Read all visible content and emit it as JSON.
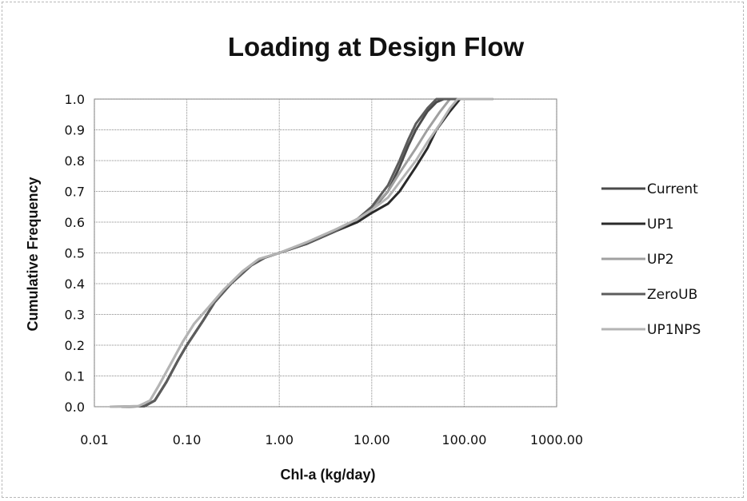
{
  "chart_data": {
    "type": "line",
    "title": "Loading at Design Flow",
    "xlabel": "Chl-a (kg/day)",
    "ylabel": "Cumulative Frequency",
    "x_scale": "log",
    "xlim": [
      0.01,
      1000
    ],
    "ylim": [
      0,
      1
    ],
    "x_ticks": [
      "0.01",
      "0.10",
      "1.00",
      "10.00",
      "100.00",
      "1000.00"
    ],
    "y_ticks": [
      "0.0",
      "0.1",
      "0.2",
      "0.3",
      "0.4",
      "0.5",
      "0.6",
      "0.7",
      "0.8",
      "0.9",
      "1.0"
    ],
    "grid": true,
    "legend_position": "right",
    "series": [
      {
        "name": "Current",
        "color": "#4a4a4a",
        "points": [
          [
            0.02,
            0.0
          ],
          [
            0.035,
            0.002
          ],
          [
            0.045,
            0.02
          ],
          [
            0.06,
            0.08
          ],
          [
            0.08,
            0.15
          ],
          [
            0.1,
            0.2
          ],
          [
            0.15,
            0.28
          ],
          [
            0.2,
            0.34
          ],
          [
            0.3,
            0.4
          ],
          [
            0.5,
            0.46
          ],
          [
            0.7,
            0.485
          ],
          [
            1.0,
            0.5
          ],
          [
            2.0,
            0.53
          ],
          [
            4.0,
            0.57
          ],
          [
            7.0,
            0.61
          ],
          [
            10.0,
            0.64
          ],
          [
            15.0,
            0.7
          ],
          [
            20.0,
            0.78
          ],
          [
            25.0,
            0.85
          ],
          [
            30.0,
            0.9
          ],
          [
            40.0,
            0.96
          ],
          [
            50.0,
            0.99
          ],
          [
            60.0,
            1.0
          ],
          [
            200.0,
            1.0
          ]
        ]
      },
      {
        "name": "UP1",
        "color": "#2a2a2a",
        "points": [
          [
            0.02,
            0.0
          ],
          [
            0.035,
            0.002
          ],
          [
            0.045,
            0.02
          ],
          [
            0.06,
            0.08
          ],
          [
            0.08,
            0.15
          ],
          [
            0.1,
            0.2
          ],
          [
            0.15,
            0.28
          ],
          [
            0.2,
            0.34
          ],
          [
            0.3,
            0.4
          ],
          [
            0.5,
            0.46
          ],
          [
            0.7,
            0.485
          ],
          [
            1.0,
            0.5
          ],
          [
            2.0,
            0.53
          ],
          [
            4.0,
            0.57
          ],
          [
            7.0,
            0.6
          ],
          [
            10.0,
            0.63
          ],
          [
            15.0,
            0.66
          ],
          [
            20.0,
            0.7
          ],
          [
            30.0,
            0.78
          ],
          [
            40.0,
            0.84
          ],
          [
            50.0,
            0.9
          ],
          [
            70.0,
            0.96
          ],
          [
            90.0,
            1.0
          ],
          [
            200.0,
            1.0
          ]
        ]
      },
      {
        "name": "UP2",
        "color": "#a0a0a0",
        "points": [
          [
            0.015,
            0.0
          ],
          [
            0.03,
            0.002
          ],
          [
            0.04,
            0.02
          ],
          [
            0.05,
            0.07
          ],
          [
            0.07,
            0.15
          ],
          [
            0.09,
            0.21
          ],
          [
            0.12,
            0.27
          ],
          [
            0.18,
            0.33
          ],
          [
            0.25,
            0.38
          ],
          [
            0.4,
            0.44
          ],
          [
            0.6,
            0.48
          ],
          [
            1.0,
            0.5
          ],
          [
            2.0,
            0.535
          ],
          [
            4.0,
            0.575
          ],
          [
            7.0,
            0.61
          ],
          [
            10.0,
            0.645
          ],
          [
            15.0,
            0.7
          ],
          [
            20.0,
            0.76
          ],
          [
            30.0,
            0.84
          ],
          [
            40.0,
            0.9
          ],
          [
            55.0,
            0.96
          ],
          [
            70.0,
            1.0
          ],
          [
            200.0,
            1.0
          ]
        ]
      },
      {
        "name": "ZeroUB",
        "color": "#5c5c5c",
        "points": [
          [
            0.02,
            0.0
          ],
          [
            0.035,
            0.002
          ],
          [
            0.045,
            0.02
          ],
          [
            0.06,
            0.08
          ],
          [
            0.08,
            0.15
          ],
          [
            0.1,
            0.2
          ],
          [
            0.15,
            0.28
          ],
          [
            0.2,
            0.34
          ],
          [
            0.3,
            0.4
          ],
          [
            0.5,
            0.46
          ],
          [
            0.7,
            0.485
          ],
          [
            1.0,
            0.5
          ],
          [
            2.0,
            0.53
          ],
          [
            4.0,
            0.57
          ],
          [
            7.0,
            0.61
          ],
          [
            10.0,
            0.65
          ],
          [
            15.0,
            0.72
          ],
          [
            20.0,
            0.8
          ],
          [
            25.0,
            0.87
          ],
          [
            30.0,
            0.92
          ],
          [
            40.0,
            0.97
          ],
          [
            50.0,
            1.0
          ],
          [
            200.0,
            1.0
          ]
        ]
      },
      {
        "name": "UP1NPS",
        "color": "#b4b4b4",
        "points": [
          [
            0.015,
            0.0
          ],
          [
            0.03,
            0.002
          ],
          [
            0.04,
            0.02
          ],
          [
            0.05,
            0.07
          ],
          [
            0.07,
            0.15
          ],
          [
            0.09,
            0.21
          ],
          [
            0.12,
            0.27
          ],
          [
            0.18,
            0.33
          ],
          [
            0.25,
            0.38
          ],
          [
            0.4,
            0.44
          ],
          [
            0.6,
            0.48
          ],
          [
            1.0,
            0.5
          ],
          [
            2.0,
            0.535
          ],
          [
            4.0,
            0.575
          ],
          [
            7.0,
            0.61
          ],
          [
            10.0,
            0.64
          ],
          [
            15.0,
            0.68
          ],
          [
            20.0,
            0.73
          ],
          [
            30.0,
            0.8
          ],
          [
            40.0,
            0.86
          ],
          [
            55.0,
            0.92
          ],
          [
            70.0,
            0.97
          ],
          [
            85.0,
            1.0
          ],
          [
            200.0,
            1.0
          ]
        ]
      }
    ]
  }
}
